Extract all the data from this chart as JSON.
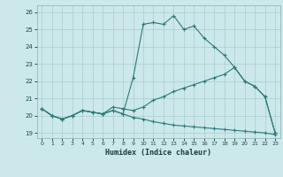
{
  "title": "",
  "xlabel": "Humidex (Indice chaleur)",
  "background_color": "#cce8ea",
  "grid_color": "#aacccc",
  "line_color": "#2a7a7a",
  "xlim": [
    -0.5,
    23.5
  ],
  "ylim": [
    18.7,
    26.4
  ],
  "xticks": [
    0,
    1,
    2,
    3,
    4,
    5,
    6,
    7,
    8,
    9,
    10,
    11,
    12,
    13,
    14,
    15,
    16,
    17,
    18,
    19,
    20,
    21,
    22,
    23
  ],
  "yticks": [
    19,
    20,
    21,
    22,
    23,
    24,
    25,
    26
  ],
  "curve1_x": [
    0,
    1,
    2,
    3,
    4,
    5,
    6,
    7,
    8,
    9,
    10,
    11,
    12,
    13,
    14,
    15,
    16,
    17,
    18,
    19,
    20,
    21,
    22,
    23
  ],
  "curve1_y": [
    20.4,
    20.0,
    19.8,
    20.0,
    20.3,
    20.2,
    20.1,
    20.3,
    20.1,
    22.2,
    25.3,
    25.4,
    25.3,
    25.8,
    25.0,
    25.2,
    24.5,
    24.0,
    23.5,
    22.8,
    22.0,
    21.7,
    21.1,
    19.0
  ],
  "curve2_x": [
    0,
    1,
    2,
    3,
    4,
    5,
    6,
    7,
    8,
    9,
    10,
    11,
    12,
    13,
    14,
    15,
    16,
    17,
    18,
    19,
    20,
    21,
    22,
    23
  ],
  "curve2_y": [
    20.4,
    20.0,
    19.8,
    20.0,
    20.3,
    20.2,
    20.1,
    20.5,
    20.4,
    20.3,
    20.5,
    20.9,
    21.1,
    21.4,
    21.6,
    21.8,
    22.0,
    22.2,
    22.4,
    22.8,
    22.0,
    21.7,
    21.1,
    19.0
  ],
  "curve3_x": [
    0,
    1,
    2,
    3,
    4,
    5,
    6,
    7,
    8,
    9,
    10,
    11,
    12,
    13,
    14,
    15,
    16,
    17,
    18,
    19,
    20,
    21,
    22,
    23
  ],
  "curve3_y": [
    20.4,
    20.0,
    19.8,
    20.0,
    20.3,
    20.2,
    20.1,
    20.3,
    20.1,
    19.9,
    19.8,
    19.65,
    19.55,
    19.45,
    19.4,
    19.35,
    19.3,
    19.25,
    19.2,
    19.15,
    19.1,
    19.05,
    19.0,
    18.9
  ]
}
